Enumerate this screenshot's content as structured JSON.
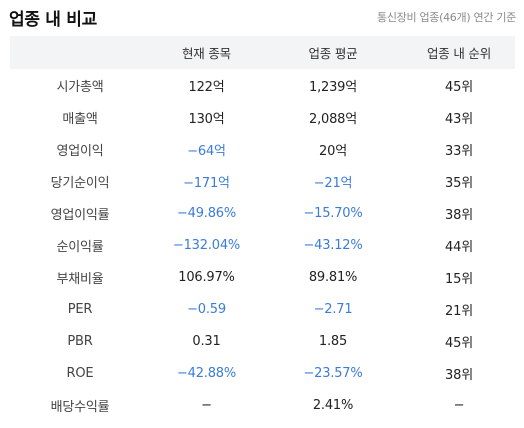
{
  "header": {
    "title": "업종 내 비교",
    "subtitle": "통신장비 업종(46개) 연간 기준"
  },
  "colors": {
    "negative": "#3b7cd8",
    "header_bg": "#f3f4f6"
  },
  "columns": [
    "",
    "현재 종목",
    "업종 평균",
    "업종 내 순위"
  ],
  "rows": [
    {
      "label": "시가총액",
      "current": "122억",
      "avg": "1,239억",
      "rank": "45위"
    },
    {
      "label": "매출액",
      "current": "130억",
      "avg": "2,088억",
      "rank": "43위"
    },
    {
      "label": "영업이익",
      "current": "−64억",
      "avg": "20억",
      "rank": "33위"
    },
    {
      "label": "당기순이익",
      "current": "−171억",
      "avg": "−21억",
      "rank": "35위"
    },
    {
      "label": "영업이익률",
      "current": "−49.86%",
      "avg": "−15.70%",
      "rank": "38위"
    },
    {
      "label": "순이익률",
      "current": "−132.04%",
      "avg": "−43.12%",
      "rank": "44위"
    },
    {
      "label": "부채비율",
      "current": "106.97%",
      "avg": "89.81%",
      "rank": "15위"
    },
    {
      "label": "PER",
      "current": "−0.59",
      "avg": "−2.71",
      "rank": "21위"
    },
    {
      "label": "PBR",
      "current": "0.31",
      "avg": "1.85",
      "rank": "45위"
    },
    {
      "label": "ROE",
      "current": "−42.88%",
      "avg": "−23.57%",
      "rank": "38위"
    },
    {
      "label": "배당수익률",
      "current": "−",
      "avg": "2.41%",
      "rank": "−"
    }
  ]
}
